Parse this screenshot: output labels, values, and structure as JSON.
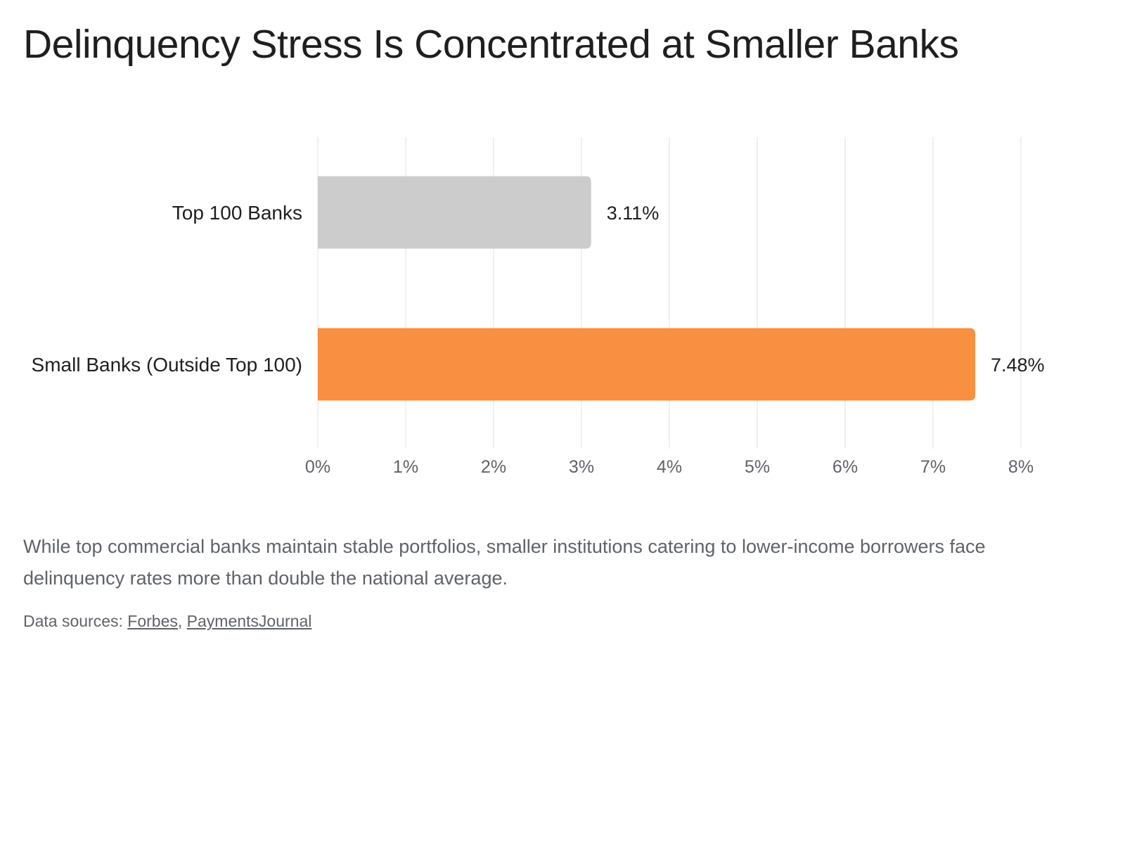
{
  "title": "Delinquency Stress Is Concentrated at Smaller Banks",
  "caption": "While top commercial banks maintain stable portfolios, smaller institutions catering to lower-income borrowers face delinquency rates more than double the national average.",
  "sources": {
    "prefix": "Data sources: ",
    "separator": ", ",
    "links": [
      "Forbes",
      "PaymentsJournal"
    ]
  },
  "chart_data": {
    "type": "bar",
    "orientation": "horizontal",
    "categories": [
      "Top 100 Banks",
      "Small Banks (Outside Top 100)"
    ],
    "values": [
      3.11,
      7.48
    ],
    "data_labels": [
      "3.11%",
      "7.48%"
    ],
    "colors": [
      "#cccccc",
      "#f98f40"
    ],
    "xlim": [
      0,
      8
    ],
    "x_ticks": [
      0,
      1,
      2,
      3,
      4,
      5,
      6,
      7,
      8
    ],
    "x_tick_labels": [
      "0%",
      "1%",
      "2%",
      "3%",
      "4%",
      "5%",
      "6%",
      "7%",
      "8%"
    ],
    "grid": true,
    "legend": "none",
    "gridline_color": "#ebebeb"
  }
}
